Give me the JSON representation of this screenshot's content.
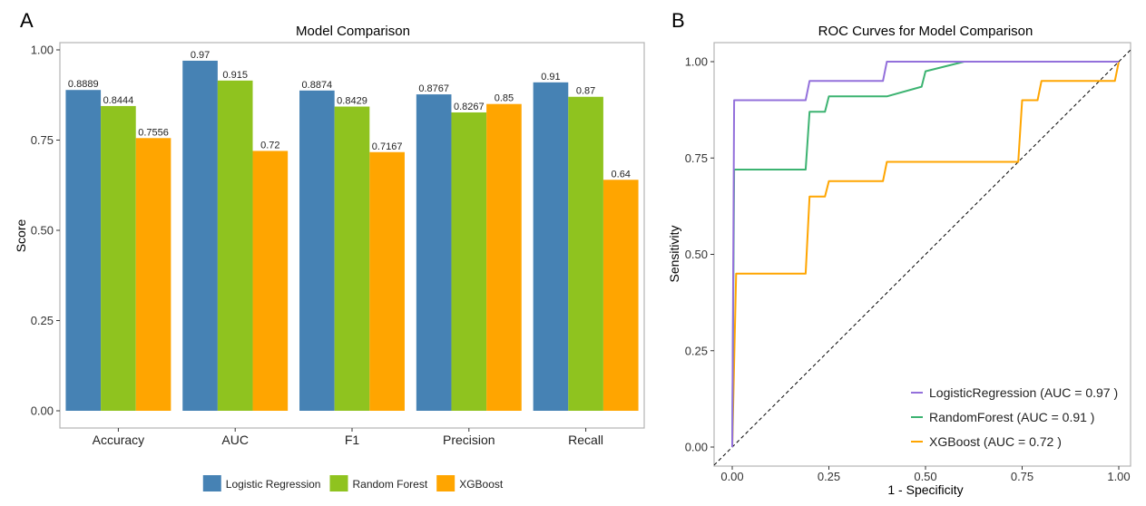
{
  "chart_data": [
    {
      "panel_label": "A",
      "type": "bar",
      "title": "Model Comparison",
      "xlabel": "",
      "ylabel": "Score",
      "ylim": [
        0,
        1
      ],
      "yticks": [
        "0.00",
        "0.25",
        "0.50",
        "0.75",
        "1.00"
      ],
      "ytick_values": [
        0,
        0.25,
        0.5,
        0.75,
        1.0
      ],
      "grid": false,
      "legend_position": "bottom",
      "categories": [
        "Accuracy",
        "AUC",
        "F1",
        "Precision",
        "Recall"
      ],
      "series": [
        {
          "name": "Logistic Regression",
          "color": "#4682B4",
          "values": [
            0.8889,
            0.97,
            0.8874,
            0.8767,
            0.91
          ],
          "labels": [
            "0.8889",
            "0.97",
            "0.8874",
            "0.8767",
            "0.91"
          ]
        },
        {
          "name": "Random Forest",
          "color": "#8FC31F",
          "values": [
            0.8444,
            0.915,
            0.8429,
            0.8267,
            0.87
          ],
          "labels": [
            "0.8444",
            "0.915",
            "0.8429",
            "0.8267",
            "0.87"
          ]
        },
        {
          "name": "XGBoost",
          "color": "#FFA500",
          "values": [
            0.7556,
            0.72,
            0.7167,
            0.85,
            0.64
          ],
          "labels": [
            "0.7556",
            "0.72",
            "0.7167",
            "0.85",
            "0.64"
          ]
        }
      ]
    },
    {
      "panel_label": "B",
      "type": "line",
      "title": "ROC Curves for Model Comparison",
      "xlabel": "1 - Specificity",
      "ylabel": "Sensitivity",
      "xlim": [
        0,
        1
      ],
      "ylim": [
        0,
        1
      ],
      "xticks": [
        "0.00",
        "0.25",
        "0.50",
        "0.75",
        "1.00"
      ],
      "xtick_values": [
        0,
        0.25,
        0.5,
        0.75,
        1.0
      ],
      "yticks": [
        "0.00",
        "0.25",
        "0.50",
        "0.75",
        "1.00"
      ],
      "ytick_values": [
        0,
        0.25,
        0.5,
        0.75,
        1.0
      ],
      "grid": false,
      "legend_position": "bottom-right",
      "reference_line": {
        "style": "dashed",
        "color": "#000000",
        "from": [
          0,
          0
        ],
        "to": [
          1,
          1
        ]
      },
      "series": [
        {
          "name": "LogisticRegression (AUC = 0.97 )",
          "color": "#9370DB",
          "x": [
            0,
            0.005,
            0.19,
            0.2,
            0.39,
            0.4,
            1.0
          ],
          "y": [
            0,
            0.9,
            0.9,
            0.95,
            0.95,
            1.0,
            1.0
          ]
        },
        {
          "name": "RandomForest (AUC = 0.91 )",
          "color": "#3CB371",
          "x": [
            0,
            0.005,
            0.19,
            0.2,
            0.24,
            0.25,
            0.4,
            0.49,
            0.5,
            0.6,
            1.0
          ],
          "y": [
            0,
            0.72,
            0.72,
            0.87,
            0.87,
            0.91,
            0.91,
            0.935,
            0.975,
            1.0,
            1.0
          ]
        },
        {
          "name": "XGBoost (AUC = 0.72 )",
          "color": "#FFA500",
          "x": [
            0,
            0.01,
            0.19,
            0.2,
            0.24,
            0.25,
            0.39,
            0.4,
            0.74,
            0.75,
            0.79,
            0.8,
            0.99,
            1.0
          ],
          "y": [
            0,
            0.45,
            0.45,
            0.65,
            0.65,
            0.69,
            0.69,
            0.74,
            0.74,
            0.9,
            0.9,
            0.95,
            0.95,
            1.0
          ]
        }
      ]
    }
  ]
}
